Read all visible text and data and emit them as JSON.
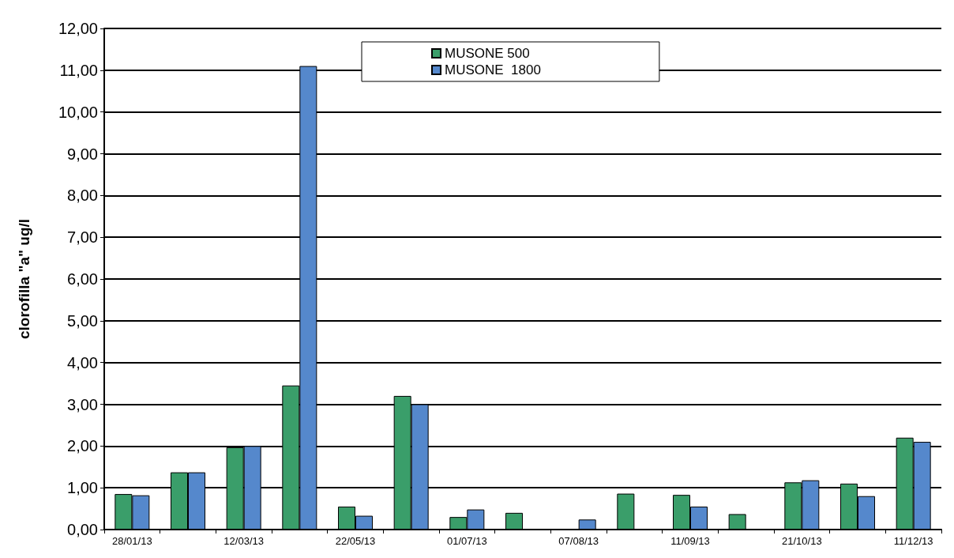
{
  "chart_data": {
    "type": "bar",
    "ylabel": "clorofilla \"a\" ug/l",
    "categories": [
      "28/01/13",
      null,
      "12/03/13",
      null,
      "22/05/13",
      null,
      "01/07/13",
      null,
      "07/08/13",
      null,
      "11/09/13",
      null,
      "21/10/13",
      null,
      "11/12/13"
    ],
    "series": [
      {
        "name": "MUSONE 500",
        "color": "#3a9e6a",
        "values": [
          0.85,
          1.37,
          1.97,
          3.45,
          0.55,
          3.2,
          0.3,
          0.4,
          null,
          0.86,
          0.83,
          0.37,
          1.13,
          1.1,
          2.2
        ]
      },
      {
        "name": "MUSONE  1800",
        "color": "#5588cc",
        "values": [
          0.82,
          1.37,
          2.0,
          11.1,
          0.33,
          3.0,
          0.48,
          null,
          0.24,
          null,
          0.55,
          null,
          1.18,
          0.8,
          2.1
        ]
      }
    ],
    "ylim": [
      0,
      12
    ],
    "yticks": [
      {
        "value": 0,
        "label": "0,00"
      },
      {
        "value": 1,
        "label": "1,00"
      },
      {
        "value": 2,
        "label": "2,00"
      },
      {
        "value": 3,
        "label": "3,00"
      },
      {
        "value": 4,
        "label": "4,00"
      },
      {
        "value": 5,
        "label": "5,00"
      },
      {
        "value": 6,
        "label": "6,00"
      },
      {
        "value": 7,
        "label": "7,00"
      },
      {
        "value": 8,
        "label": "8,00"
      },
      {
        "value": 9,
        "label": "9,00"
      },
      {
        "value": 10,
        "label": "10,00"
      },
      {
        "value": 11,
        "label": "11,00"
      },
      {
        "value": 12,
        "label": "12,00"
      }
    ],
    "grid": "y",
    "legend": "top"
  }
}
